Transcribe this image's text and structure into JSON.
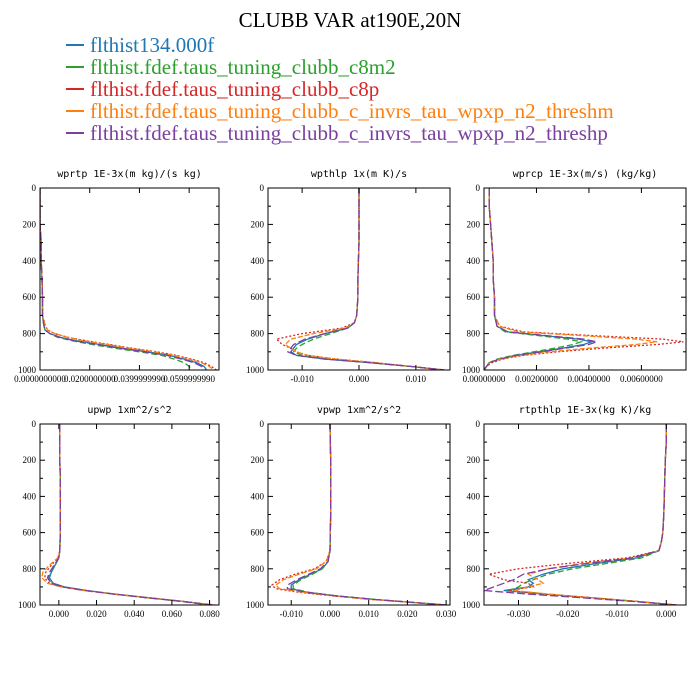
{
  "title": "CLUBB VAR at190E,20N",
  "legend": [
    {
      "name": "flthist134.000f",
      "color": "#1f77b4"
    },
    {
      "name": "flthist.fdef.taus_tuning_clubb_c8m2",
      "color": "#2ca02c"
    },
    {
      "name": "flthist.fdef.taus_tuning_clubb_c8p",
      "color": "#d62728"
    },
    {
      "name": "flthist.fdef.taus_tuning_clubb_c_invrs_tau_wpxp_n2_threshm",
      "color": "#ff7f0e"
    },
    {
      "name": "flthist.fdef.taus_tuning_clubb_c_invrs_tau_wpxp_n2_threshp",
      "color": "#7b3fa0"
    }
  ],
  "chart_data": [
    {
      "type": "line",
      "title": "wprtp  1E-3x(m kg)/(s kg)",
      "xlim": [
        0.0,
        0.072
      ],
      "ylim": [
        1000,
        0
      ],
      "xticks": [
        0.0,
        0.02,
        0.04,
        0.06
      ],
      "xtick_labels": [
        "0.0000000000",
        "0.0200000000",
        "0.0399999990",
        "0.0599999990"
      ],
      "yticks": [
        0,
        200,
        400,
        600,
        800,
        1000
      ],
      "y": [
        0,
        100,
        200,
        300,
        400,
        500,
        600,
        700,
        750,
        780,
        800,
        820,
        840,
        860,
        880,
        900,
        920,
        940,
        960,
        980,
        1000
      ],
      "series": [
        {
          "values": [
            0,
            0,
            0,
            0.0005,
            0.0005,
            0.0008,
            0.001,
            0.001,
            0.0015,
            0.002,
            0.004,
            0.008,
            0.015,
            0.024,
            0.033,
            0.043,
            0.052,
            0.058,
            0.063,
            0.066,
            0.067
          ]
        },
        {
          "values": [
            0,
            0,
            0,
            0.0005,
            0.0005,
            0.0008,
            0.001,
            0.001,
            0.0015,
            0.002,
            0.004,
            0.007,
            0.013,
            0.021,
            0.03,
            0.04,
            0.049,
            0.054,
            0.058,
            0.06,
            0.061
          ]
        },
        {
          "values": [
            0,
            0,
            0,
            0.0005,
            0.0005,
            0.0008,
            0.001,
            0.001,
            0.002,
            0.003,
            0.006,
            0.011,
            0.019,
            0.028,
            0.037,
            0.047,
            0.055,
            0.061,
            0.066,
            0.069,
            0.071
          ]
        },
        {
          "values": [
            0,
            0,
            0,
            0.0005,
            0.0005,
            0.0008,
            0.001,
            0.001,
            0.002,
            0.003,
            0.006,
            0.011,
            0.018,
            0.027,
            0.036,
            0.046,
            0.054,
            0.06,
            0.065,
            0.068,
            0.07
          ]
        },
        {
          "values": [
            0,
            0,
            0,
            0.0005,
            0.0005,
            0.0008,
            0.001,
            0.001,
            0.0015,
            0.002,
            0.004,
            0.008,
            0.014,
            0.023,
            0.032,
            0.042,
            0.051,
            0.057,
            0.062,
            0.065,
            0.066
          ]
        }
      ]
    },
    {
      "type": "line",
      "title": "wpthlp  1x(m K)/s",
      "xlim": [
        -0.016,
        0.016
      ],
      "ylim": [
        1000,
        0
      ],
      "xticks": [
        -0.01,
        0.0,
        0.01
      ],
      "xtick_labels": [
        "-0.010",
        "0.000",
        "0.010"
      ],
      "yticks": [
        0,
        200,
        400,
        600,
        800,
        1000
      ],
      "y": [
        0,
        100,
        200,
        300,
        400,
        500,
        600,
        700,
        740,
        770,
        800,
        830,
        860,
        880,
        900,
        920,
        940,
        960,
        980,
        1000
      ],
      "series": [
        {
          "values": [
            0,
            0,
            0,
            0,
            -0.0001,
            -0.0002,
            -0.0002,
            -0.0004,
            -0.0008,
            -0.002,
            -0.006,
            -0.009,
            -0.011,
            -0.0115,
            -0.012,
            -0.011,
            -0.006,
            0.002,
            0.009,
            0.015
          ]
        },
        {
          "values": [
            0,
            0,
            0,
            0,
            -0.0001,
            -0.0002,
            -0.0002,
            -0.0004,
            -0.0008,
            -0.002,
            -0.005,
            -0.008,
            -0.01,
            -0.011,
            -0.0115,
            -0.01,
            -0.005,
            0.002,
            0.009,
            0.015
          ]
        },
        {
          "values": [
            0,
            0,
            0,
            0,
            -0.0001,
            -0.0002,
            -0.0002,
            -0.0004,
            -0.0008,
            -0.003,
            -0.01,
            -0.0145,
            -0.0135,
            -0.012,
            -0.011,
            -0.009,
            -0.004,
            0.003,
            0.009,
            0.015
          ]
        },
        {
          "values": [
            0,
            0,
            0,
            0,
            -0.0001,
            -0.0002,
            -0.0002,
            -0.0004,
            -0.0008,
            -0.0025,
            -0.008,
            -0.012,
            -0.013,
            -0.012,
            -0.011,
            -0.009,
            -0.004,
            0.003,
            0.009,
            0.015
          ]
        },
        {
          "values": [
            0,
            0,
            0,
            0,
            -0.0001,
            -0.0002,
            -0.0002,
            -0.0004,
            -0.0008,
            -0.002,
            -0.006,
            -0.0095,
            -0.0115,
            -0.012,
            -0.0125,
            -0.011,
            -0.006,
            0.002,
            0.009,
            0.015
          ]
        }
      ]
    },
    {
      "type": "line",
      "title": "wprcp  1E-3x(m/s) (kg/kg)",
      "xlim": [
        0.0,
        0.0077
      ],
      "ylim": [
        1000,
        0
      ],
      "xticks": [
        0.0,
        0.002,
        0.004,
        0.006
      ],
      "xtick_labels": [
        "0.00000000",
        "0.00200000",
        "0.00400000",
        "0.00600000"
      ],
      "yticks": [
        0,
        200,
        400,
        600,
        800,
        1000
      ],
      "y": [
        0,
        100,
        200,
        300,
        400,
        500,
        600,
        700,
        760,
        790,
        810,
        830,
        845,
        860,
        880,
        900,
        920,
        940,
        960,
        980,
        1000
      ],
      "series": [
        {
          "values": [
            0.0002,
            0.0002,
            0.00025,
            0.0003,
            0.00035,
            0.00035,
            0.0004,
            0.0004,
            0.0005,
            0.0009,
            0.0022,
            0.0036,
            0.0041,
            0.0038,
            0.003,
            0.0021,
            0.0012,
            0.0006,
            0.0002,
            0.0001,
            0.0
          ]
        },
        {
          "values": [
            0.0002,
            0.0002,
            0.00025,
            0.0003,
            0.00035,
            0.00035,
            0.0004,
            0.0004,
            0.0005,
            0.0008,
            0.002,
            0.0032,
            0.0037,
            0.0034,
            0.0027,
            0.0019,
            0.0011,
            0.0005,
            0.0002,
            0.0001,
            0.0
          ]
        },
        {
          "values": [
            0.0002,
            0.0002,
            0.00025,
            0.0003,
            0.00035,
            0.00035,
            0.0004,
            0.0004,
            0.0006,
            0.0015,
            0.004,
            0.0068,
            0.0076,
            0.0066,
            0.0045,
            0.0028,
            0.0015,
            0.0007,
            0.0003,
            0.0001,
            0.0
          ]
        },
        {
          "values": [
            0.0002,
            0.0002,
            0.00025,
            0.0003,
            0.00035,
            0.00035,
            0.0004,
            0.0004,
            0.0006,
            0.0013,
            0.0036,
            0.0058,
            0.0066,
            0.0058,
            0.004,
            0.0025,
            0.0014,
            0.0006,
            0.0002,
            0.0001,
            0.0
          ]
        },
        {
          "values": [
            0.0002,
            0.0002,
            0.00025,
            0.0003,
            0.00035,
            0.00035,
            0.0004,
            0.0004,
            0.0005,
            0.0009,
            0.0023,
            0.0038,
            0.0043,
            0.004,
            0.0031,
            0.0022,
            0.0012,
            0.0006,
            0.0002,
            0.0001,
            0.0
          ]
        }
      ]
    },
    {
      "type": "line",
      "title": "upwp  1xm^2/s^2",
      "xlim": [
        -0.01,
        0.085
      ],
      "ylim": [
        1000,
        0
      ],
      "xticks": [
        0.0,
        0.02,
        0.04,
        0.06,
        0.08
      ],
      "xtick_labels": [
        "0.000",
        "0.020",
        "0.040",
        "0.060",
        "0.080"
      ],
      "yticks": [
        0,
        200,
        400,
        600,
        800,
        1000
      ],
      "y": [
        0,
        100,
        200,
        300,
        400,
        500,
        600,
        700,
        740,
        780,
        820,
        850,
        880,
        900,
        920,
        940,
        960,
        980,
        1000
      ],
      "series": [
        {
          "values": [
            0.0005,
            0.0005,
            0.0005,
            0.0008,
            0.0008,
            0.0008,
            0.0008,
            0.0005,
            0.0,
            -0.002,
            -0.004,
            -0.005,
            -0.003,
            0.003,
            0.015,
            0.03,
            0.048,
            0.066,
            0.082
          ]
        },
        {
          "values": [
            0.0005,
            0.0005,
            0.0005,
            0.0008,
            0.0008,
            0.0008,
            0.0008,
            0.0005,
            0.0,
            -0.002,
            -0.0045,
            -0.0055,
            -0.0035,
            0.002,
            0.014,
            0.029,
            0.047,
            0.065,
            0.081
          ]
        },
        {
          "values": [
            0.0005,
            0.0005,
            0.0005,
            0.0008,
            0.0008,
            0.0008,
            0.0008,
            0.0005,
            -0.0005,
            -0.004,
            -0.007,
            -0.0075,
            -0.005,
            0.002,
            0.014,
            0.03,
            0.048,
            0.066,
            0.083
          ]
        },
        {
          "values": [
            0.0005,
            0.0005,
            0.0005,
            0.0008,
            0.0008,
            0.0008,
            0.0008,
            0.0005,
            -0.0005,
            -0.005,
            -0.0085,
            -0.009,
            -0.006,
            0.001,
            0.013,
            0.029,
            0.047,
            0.065,
            0.082
          ]
        },
        {
          "values": [
            0.0005,
            0.0005,
            0.0005,
            0.0008,
            0.0008,
            0.0008,
            0.0008,
            0.0005,
            0.0,
            -0.0025,
            -0.005,
            -0.006,
            -0.004,
            0.002,
            0.014,
            0.029,
            0.047,
            0.065,
            0.081
          ]
        }
      ]
    },
    {
      "type": "line",
      "title": "vpwp  1xm^2/s^2",
      "xlim": [
        -0.016,
        0.031
      ],
      "ylim": [
        1000,
        0
      ],
      "xticks": [
        -0.01,
        0.0,
        0.01,
        0.02,
        0.03
      ],
      "xtick_labels": [
        "-0.010",
        "0.000",
        "0.010",
        "0.020",
        "0.030"
      ],
      "yticks": [
        0,
        200,
        400,
        600,
        800,
        1000
      ],
      "y": [
        0,
        100,
        200,
        300,
        400,
        500,
        600,
        700,
        760,
        800,
        830,
        860,
        890,
        910,
        930,
        950,
        970,
        985,
        1000
      ],
      "series": [
        {
          "values": [
            0,
            0.0001,
            0.0002,
            0.0002,
            0.0002,
            0.0002,
            0.0001,
            0.0,
            -0.0005,
            -0.002,
            -0.005,
            -0.008,
            -0.01,
            -0.01,
            -0.006,
            0.002,
            0.012,
            0.021,
            0.03
          ]
        },
        {
          "values": [
            0,
            0.0001,
            0.0002,
            0.0002,
            0.0002,
            0.0002,
            0.0001,
            0.0,
            -0.0005,
            -0.002,
            -0.0045,
            -0.0075,
            -0.0095,
            -0.0095,
            -0.0055,
            0.002,
            0.012,
            0.021,
            0.03
          ]
        },
        {
          "values": [
            0,
            0.0001,
            0.0002,
            0.0002,
            0.0002,
            0.0002,
            0.0001,
            0.0,
            -0.001,
            -0.004,
            -0.009,
            -0.013,
            -0.015,
            -0.014,
            -0.008,
            0.001,
            0.011,
            0.021,
            0.03
          ]
        },
        {
          "values": [
            0,
            0.0001,
            0.0002,
            0.0002,
            0.0002,
            0.0002,
            0.0001,
            0.0,
            -0.001,
            -0.0035,
            -0.008,
            -0.012,
            -0.014,
            -0.013,
            -0.007,
            0.001,
            0.011,
            0.021,
            0.03
          ]
        },
        {
          "values": [
            0,
            0.0001,
            0.0002,
            0.0002,
            0.0002,
            0.0002,
            0.0001,
            0.0,
            -0.0005,
            -0.0025,
            -0.0055,
            -0.0085,
            -0.011,
            -0.011,
            -0.006,
            0.002,
            0.012,
            0.021,
            0.03
          ]
        }
      ]
    },
    {
      "type": "line",
      "title": "rtpthlp  1E-3x(kg K)/kg",
      "xlim": [
        -0.037,
        0.004
      ],
      "ylim": [
        1000,
        0
      ],
      "xticks": [
        -0.03,
        -0.02,
        -0.01,
        0.0
      ],
      "xtick_labels": [
        "-0.030",
        "-0.020",
        "-0.010",
        "0.000"
      ],
      "yticks": [
        0,
        200,
        400,
        600,
        800,
        1000
      ],
      "y": [
        0,
        100,
        200,
        300,
        400,
        500,
        600,
        650,
        700,
        740,
        770,
        800,
        830,
        860,
        880,
        900,
        920,
        940,
        960,
        980,
        1000
      ],
      "series": [
        {
          "values": [
            0,
            0,
            -0.0002,
            -0.0003,
            -0.0004,
            -0.0005,
            -0.0007,
            -0.001,
            -0.0015,
            -0.006,
            -0.014,
            -0.021,
            -0.025,
            -0.028,
            -0.027,
            -0.028,
            -0.033,
            -0.025,
            -0.015,
            -0.006,
            0.002
          ]
        },
        {
          "values": [
            0,
            0,
            -0.0002,
            -0.0003,
            -0.0004,
            -0.0005,
            -0.0007,
            -0.001,
            -0.0015,
            -0.005,
            -0.012,
            -0.019,
            -0.024,
            -0.027,
            -0.029,
            -0.03,
            -0.032,
            -0.024,
            -0.015,
            -0.006,
            0.002
          ]
        },
        {
          "values": [
            0,
            0,
            -0.0002,
            -0.0003,
            -0.0004,
            -0.0005,
            -0.0007,
            -0.001,
            -0.0015,
            -0.008,
            -0.02,
            -0.03,
            -0.036,
            -0.033,
            -0.028,
            -0.027,
            -0.032,
            -0.025,
            -0.015,
            -0.006,
            0.002
          ]
        },
        {
          "values": [
            0,
            0,
            -0.0002,
            -0.0003,
            -0.0004,
            -0.0005,
            -0.0007,
            -0.001,
            -0.0015,
            -0.007,
            -0.017,
            -0.024,
            -0.028,
            -0.026,
            -0.025,
            -0.028,
            -0.031,
            -0.024,
            -0.015,
            -0.006,
            0.002
          ]
        },
        {
          "values": [
            0,
            0,
            -0.0002,
            -0.0003,
            -0.0004,
            -0.0005,
            -0.0007,
            -0.001,
            -0.0015,
            -0.007,
            -0.016,
            -0.024,
            -0.029,
            -0.031,
            -0.033,
            -0.035,
            -0.037,
            -0.028,
            -0.017,
            -0.007,
            0.002
          ]
        }
      ]
    }
  ]
}
